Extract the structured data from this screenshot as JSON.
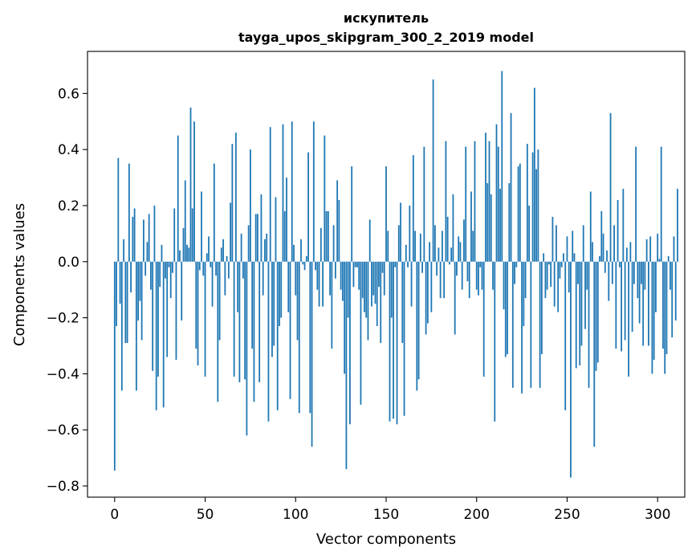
{
  "chart_data": {
    "type": "bar",
    "title_line1": "искупитель",
    "title_line2": "tayga_upos_skipgram_300_2_2019 model",
    "xlabel": "Vector components",
    "ylabel": "Components values",
    "xlim": [
      -15,
      315
    ],
    "ylim": [
      -0.84,
      0.75
    ],
    "xticks": [
      0,
      50,
      100,
      150,
      200,
      250,
      300
    ],
    "xtick_labels": [
      "0",
      "50",
      "100",
      "150",
      "200",
      "250",
      "300"
    ],
    "yticks": [
      -0.8,
      -0.6,
      -0.4,
      -0.2,
      0.0,
      0.2,
      0.4,
      0.6
    ],
    "ytick_labels": [
      "−0.8",
      "−0.6",
      "−0.4",
      "−0.2",
      "0.0",
      "0.2",
      "0.4",
      "0.6"
    ],
    "bar_color": "#1f77b4",
    "values": [
      -0.745,
      -0.23,
      0.37,
      -0.15,
      -0.46,
      0.08,
      -0.29,
      -0.29,
      0.35,
      -0.11,
      0.16,
      0.19,
      -0.46,
      -0.21,
      -0.14,
      -0.28,
      0.15,
      -0.05,
      0.07,
      0.17,
      -0.1,
      -0.39,
      0.2,
      -0.53,
      -0.41,
      -0.09,
      0.06,
      -0.52,
      -0.06,
      -0.34,
      -0.02,
      -0.13,
      -0.04,
      0.19,
      -0.35,
      0.45,
      0.04,
      -0.21,
      0.12,
      0.29,
      0.06,
      0.05,
      0.55,
      0.19,
      0.5,
      -0.31,
      -0.37,
      -0.03,
      0.25,
      -0.05,
      -0.41,
      0.03,
      0.09,
      -0.02,
      -0.16,
      0.35,
      -0.05,
      -0.5,
      -0.28,
      0.05,
      0.08,
      -0.12,
      0.02,
      -0.06,
      0.21,
      0.42,
      -0.41,
      0.46,
      -0.18,
      -0.43,
      0.1,
      -0.06,
      -0.42,
      -0.62,
      0.13,
      0.4,
      -0.31,
      -0.5,
      0.17,
      0.17,
      -0.43,
      0.24,
      -0.12,
      0.08,
      0.1,
      -0.57,
      0.48,
      -0.34,
      -0.3,
      0.23,
      -0.53,
      -0.23,
      -0.2,
      0.49,
      0.18,
      0.3,
      -0.18,
      -0.49,
      0.5,
      0.06,
      -0.12,
      -0.28,
      -0.54,
      0.08,
      -0.01,
      -0.03,
      0.02,
      0.39,
      -0.54,
      -0.66,
      0.5,
      -0.03,
      -0.1,
      -0.16,
      0.12,
      -0.16,
      0.45,
      0.18,
      0.18,
      -0.12,
      -0.31,
      0.13,
      -0.06,
      0.29,
      0.22,
      -0.1,
      -0.14,
      -0.4,
      -0.74,
      -0.2,
      -0.58,
      0.34,
      -0.09,
      -0.02,
      -0.02,
      -0.1,
      -0.51,
      -0.13,
      -0.18,
      -0.2,
      -0.28,
      0.15,
      -0.16,
      -0.12,
      -0.15,
      -0.23,
      -0.09,
      -0.29,
      -0.04,
      -0.12,
      0.34,
      0.11,
      -0.57,
      -0.2,
      -0.56,
      -0.02,
      -0.58,
      0.13,
      0.21,
      -0.29,
      -0.55,
      0.06,
      -0.02,
      0.2,
      -0.16,
      0.38,
      0.11,
      -0.46,
      -0.42,
      0.1,
      -0.04,
      0.41,
      -0.26,
      -0.22,
      0.07,
      -0.18,
      0.65,
      0.13,
      -0.05,
      0.05,
      -0.13,
      0.11,
      -0.13,
      0.43,
      0.16,
      -0.01,
      0.05,
      0.24,
      -0.26,
      -0.05,
      0.09,
      0.07,
      -0.1,
      0.15,
      0.41,
      -0.07,
      -0.13,
      0.25,
      0.11,
      0.43,
      -0.1,
      -0.12,
      -0.02,
      -0.1,
      -0.41,
      0.46,
      0.28,
      0.43,
      0.24,
      -0.1,
      -0.57,
      0.49,
      0.41,
      0.26,
      0.68,
      -0.17,
      -0.34,
      -0.33,
      0.28,
      0.53,
      -0.45,
      -0.08,
      -0.02,
      0.34,
      0.35,
      -0.47,
      -0.23,
      -0.13,
      0.42,
      0.2,
      -0.45,
      0.39,
      0.62,
      0.33,
      0.4,
      -0.45,
      -0.33,
      0.03,
      -0.13,
      -0.1,
      -0.01,
      -0.09,
      0.16,
      -0.16,
      0.13,
      -0.18,
      -0.06,
      -0.02,
      0.03,
      -0.53,
      0.09,
      -0.11,
      -0.77,
      0.11,
      0.03,
      -0.38,
      -0.08,
      -0.37,
      -0.3,
      0.13,
      -0.24,
      -0.1,
      -0.45,
      0.25,
      0.07,
      -0.66,
      -0.39,
      -0.36,
      0.02,
      0.18,
      0.1,
      -0.04,
      0.04,
      -0.14,
      0.53,
      -0.08,
      0.13,
      -0.31,
      0.22,
      -0.02,
      -0.32,
      0.26,
      -0.28,
      0.05,
      -0.41,
      0.07,
      -0.25,
      -0.08,
      0.41,
      -0.13,
      -0.22,
      -0.08,
      -0.3,
      -0.1,
      0.08,
      -0.3,
      0.09,
      -0.4,
      -0.35,
      -0.18,
      0.1,
      0.01,
      0.41,
      -0.31,
      -0.4,
      -0.33,
      0.02,
      -0.1,
      -0.27,
      0.09,
      -0.21,
      0.26
    ]
  }
}
